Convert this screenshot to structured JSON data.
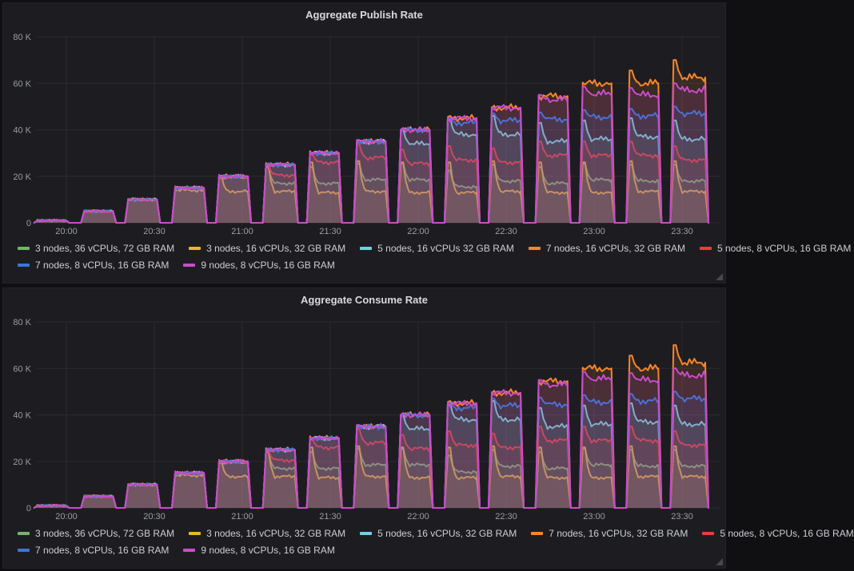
{
  "colors": {
    "green": "#75B36A",
    "yellow": "#E8B531",
    "cyan": "#70D1E0",
    "orange": "#F8852B",
    "red": "#E2413E",
    "blue": "#3B76D9",
    "magenta": "#CB4BCB"
  },
  "panels": [
    {
      "title": "Aggregate Publish Rate"
    },
    {
      "title": "Aggregate Consume Rate"
    }
  ],
  "chart_data": [
    {
      "type": "area",
      "title": "Aggregate Publish Rate",
      "ylabel": "",
      "ylim_k": [
        0,
        80
      ],
      "grid": true,
      "legend_position": "bottom",
      "y_ticks": [
        {
          "k": 0,
          "label": "0"
        },
        {
          "k": 20,
          "label": "20 K"
        },
        {
          "k": 40,
          "label": "40 K"
        },
        {
          "k": 60,
          "label": "60 K"
        },
        {
          "k": 80,
          "label": "80 K"
        }
      ],
      "x_ticks": [
        "20:00",
        "20:30",
        "21:00",
        "21:30",
        "22:00",
        "22:30",
        "23:00",
        "23:30"
      ],
      "series": [
        {
          "key": "green",
          "label": "3 nodes, 36 vCPUs, 72 GB RAM"
        },
        {
          "key": "yellow",
          "label": "3 nodes, 16 vCPUs, 32 GB RAM"
        },
        {
          "key": "cyan",
          "label": "5 nodes, 16 vCPUs 32 GB RAM"
        },
        {
          "key": "orange",
          "label": "7 nodes, 16 vCPUs, 32 GB RAM"
        },
        {
          "key": "red",
          "label": "5 nodes, 8 vCPUs, 16 GB RAM"
        },
        {
          "key": "blue",
          "label": "7 nodes, 8 vCPUs, 16 GB RAM"
        },
        {
          "key": "magenta",
          "label": "9 nodes, 8 vCPUs, 16 GB RAM"
        }
      ],
      "bursts": [
        {
          "start": "19:49",
          "end": "20:01",
          "target_k": 1,
          "values_k": {
            "green": 1,
            "yellow": 1,
            "cyan": 1,
            "orange": 1,
            "red": 1,
            "blue": 1,
            "magenta": 1
          }
        },
        {
          "start": "20:05",
          "end": "20:17",
          "target_k": 5,
          "values_k": {
            "green": 5,
            "yellow": 5,
            "cyan": 5,
            "orange": 5,
            "red": 5,
            "blue": 5,
            "magenta": 5
          }
        },
        {
          "start": "20:20",
          "end": "20:32",
          "target_k": 10,
          "values_k": {
            "green": 10,
            "yellow": 10,
            "cyan": 10,
            "orange": 10,
            "red": 10,
            "blue": 10,
            "magenta": 10
          }
        },
        {
          "start": "20:36",
          "end": "20:48",
          "target_k": 15,
          "values_k": {
            "green": 15,
            "yellow": 14,
            "cyan": 15,
            "orange": 15,
            "red": 15,
            "blue": 15,
            "magenta": 15
          }
        },
        {
          "start": "20:51",
          "end": "21:03",
          "target_k": 20,
          "values_k": {
            "green": 19.5,
            "yellow": 13.5,
            "cyan": 20,
            "orange": 20,
            "red": 20,
            "blue": 20,
            "magenta": 20
          }
        },
        {
          "start": "21:07",
          "end": "21:19",
          "target_k": 25,
          "values_k": {
            "green": 17,
            "yellow": 13.5,
            "cyan": 25,
            "orange": 25,
            "red": 20.5,
            "blue": 25,
            "magenta": 25
          }
        },
        {
          "start": "21:22",
          "end": "21:34",
          "target_k": 30,
          "values_k": {
            "green": 17,
            "yellow": 13,
            "cyan": 30,
            "orange": 30,
            "red": 26,
            "blue": 30,
            "magenta": 30
          }
        },
        {
          "start": "21:38",
          "end": "21:50",
          "target_k": 35,
          "values_k": {
            "green": 18.5,
            "yellow": 13.5,
            "cyan": 35,
            "orange": 35,
            "red": 28,
            "blue": 35,
            "magenta": 35
          }
        },
        {
          "start": "21:53",
          "end": "22:05",
          "target_k": 40,
          "values_k": {
            "green": 18.5,
            "yellow": 13,
            "cyan": 34,
            "orange": 40,
            "red": 25.5,
            "blue": 40,
            "magenta": 40
          }
        },
        {
          "start": "22:09",
          "end": "22:21",
          "target_k": 45,
          "values_k": {
            "green": 15.5,
            "yellow": 13,
            "cyan": 38,
            "orange": 45,
            "red": 27,
            "blue": 43,
            "magenta": 45
          }
        },
        {
          "start": "22:24",
          "end": "22:36",
          "target_k": 50,
          "values_k": {
            "green": 18,
            "yellow": 13.5,
            "cyan": 38,
            "orange": 49.5,
            "red": 26,
            "blue": 44,
            "magenta": 49.5
          }
        },
        {
          "start": "22:40",
          "end": "22:52",
          "target_k": 55,
          "values_k": {
            "green": 17,
            "yellow": 13,
            "cyan": 35,
            "orange": 54.5,
            "red": 29,
            "blue": 44.5,
            "magenta": 53
          }
        },
        {
          "start": "22:55",
          "end": "23:07",
          "target_k": 60,
          "values_k": {
            "green": 18.5,
            "yellow": 13,
            "cyan": 36,
            "orange": 60,
            "red": 29,
            "blue": 45.5,
            "magenta": 55.5
          }
        },
        {
          "start": "23:11",
          "end": "23:23",
          "target_k": 65,
          "values_k": {
            "green": 18,
            "yellow": 13.5,
            "cyan": 37,
            "orange": 60,
            "red": 29,
            "blue": 46,
            "magenta": 55
          },
          "spike_k": {
            "orange": 65.5
          }
        },
        {
          "start": "23:26",
          "end": "23:39",
          "target_k": 70,
          "values_k": {
            "green": 18,
            "yellow": 13.5,
            "cyan": 36,
            "orange": 62.5,
            "red": 27,
            "blue": 47,
            "magenta": 57
          },
          "spike_k": {
            "orange": 70
          }
        }
      ]
    },
    {
      "type": "area",
      "title": "Aggregate Consume Rate",
      "ylabel": "",
      "ylim_k": [
        0,
        80
      ],
      "grid": true,
      "legend_position": "bottom",
      "y_ticks": [
        {
          "k": 0,
          "label": "0"
        },
        {
          "k": 20,
          "label": "20 K"
        },
        {
          "k": 40,
          "label": "40 K"
        },
        {
          "k": 60,
          "label": "60 K"
        },
        {
          "k": 80,
          "label": "80 K"
        }
      ],
      "x_ticks": [
        "20:00",
        "20:30",
        "21:00",
        "21:30",
        "22:00",
        "22:30",
        "23:00",
        "23:30"
      ],
      "series": [
        {
          "key": "green",
          "label": "3 nodes, 36 vCPUs, 72 GB RAM"
        },
        {
          "key": "yellow",
          "label": "3 nodes, 16 vCPUs, 32 GB RAM"
        },
        {
          "key": "cyan",
          "label": "5 nodes, 16 vCPUs, 32 GB RAM"
        },
        {
          "key": "orange",
          "label": "7 nodes, 16 vCPUs, 32 GB RAM"
        },
        {
          "key": "red",
          "label": "5 nodes, 8 vCPUs, 16 GB RAM"
        },
        {
          "key": "blue",
          "label": "7 nodes, 8 vCPUs, 16 GB RAM"
        },
        {
          "key": "magenta",
          "label": "9 nodes, 8 vCPUs, 16 GB RAM"
        }
      ],
      "bursts": [
        {
          "start": "19:49",
          "end": "20:01",
          "target_k": 1,
          "values_k": {
            "green": 1,
            "yellow": 1,
            "cyan": 1,
            "orange": 1,
            "red": 1,
            "blue": 1,
            "magenta": 1
          }
        },
        {
          "start": "20:05",
          "end": "20:17",
          "target_k": 5,
          "values_k": {
            "green": 5,
            "yellow": 5,
            "cyan": 5,
            "orange": 5,
            "red": 5,
            "blue": 5,
            "magenta": 5
          }
        },
        {
          "start": "20:20",
          "end": "20:32",
          "target_k": 10,
          "values_k": {
            "green": 10,
            "yellow": 10,
            "cyan": 10,
            "orange": 10,
            "red": 10,
            "blue": 10,
            "magenta": 10
          }
        },
        {
          "start": "20:36",
          "end": "20:48",
          "target_k": 15,
          "values_k": {
            "green": 15,
            "yellow": 14,
            "cyan": 15,
            "orange": 15,
            "red": 15,
            "blue": 15,
            "magenta": 15
          }
        },
        {
          "start": "20:51",
          "end": "21:03",
          "target_k": 20,
          "values_k": {
            "green": 19.5,
            "yellow": 13.5,
            "cyan": 20,
            "orange": 20,
            "red": 20,
            "blue": 20,
            "magenta": 20
          }
        },
        {
          "start": "21:07",
          "end": "21:19",
          "target_k": 25,
          "values_k": {
            "green": 17,
            "yellow": 13.5,
            "cyan": 25,
            "orange": 25,
            "red": 20.5,
            "blue": 25,
            "magenta": 25
          }
        },
        {
          "start": "21:22",
          "end": "21:34",
          "target_k": 30,
          "values_k": {
            "green": 17,
            "yellow": 13,
            "cyan": 30,
            "orange": 30,
            "red": 26,
            "blue": 30,
            "magenta": 30
          }
        },
        {
          "start": "21:38",
          "end": "21:50",
          "target_k": 35,
          "values_k": {
            "green": 18.5,
            "yellow": 13.5,
            "cyan": 35,
            "orange": 35,
            "red": 28,
            "blue": 35,
            "magenta": 35
          }
        },
        {
          "start": "21:53",
          "end": "22:05",
          "target_k": 40,
          "values_k": {
            "green": 18.5,
            "yellow": 13,
            "cyan": 34,
            "orange": 40,
            "red": 25.5,
            "blue": 40,
            "magenta": 40
          }
        },
        {
          "start": "22:09",
          "end": "22:21",
          "target_k": 45,
          "values_k": {
            "green": 15.5,
            "yellow": 13,
            "cyan": 38,
            "orange": 45,
            "red": 27,
            "blue": 43,
            "magenta": 45
          }
        },
        {
          "start": "22:24",
          "end": "22:36",
          "target_k": 50,
          "values_k": {
            "green": 18,
            "yellow": 13.5,
            "cyan": 38,
            "orange": 49.5,
            "red": 26,
            "blue": 44,
            "magenta": 49.5
          }
        },
        {
          "start": "22:40",
          "end": "22:52",
          "target_k": 55,
          "values_k": {
            "green": 17,
            "yellow": 13,
            "cyan": 35,
            "orange": 54.5,
            "red": 29,
            "blue": 44.5,
            "magenta": 53
          }
        },
        {
          "start": "22:55",
          "end": "23:07",
          "target_k": 60,
          "values_k": {
            "green": 18.5,
            "yellow": 13,
            "cyan": 36,
            "orange": 60,
            "red": 29,
            "blue": 45.5,
            "magenta": 55.5
          }
        },
        {
          "start": "23:11",
          "end": "23:23",
          "target_k": 65,
          "values_k": {
            "green": 18,
            "yellow": 13.5,
            "cyan": 37,
            "orange": 60,
            "red": 29,
            "blue": 46,
            "magenta": 55
          },
          "spike_k": {
            "orange": 65.5
          }
        },
        {
          "start": "23:26",
          "end": "23:39",
          "target_k": 70,
          "values_k": {
            "green": 18,
            "yellow": 13.5,
            "cyan": 36,
            "orange": 62.5,
            "red": 27,
            "blue": 47,
            "magenta": 57
          },
          "spike_k": {
            "orange": 70
          }
        }
      ]
    }
  ]
}
